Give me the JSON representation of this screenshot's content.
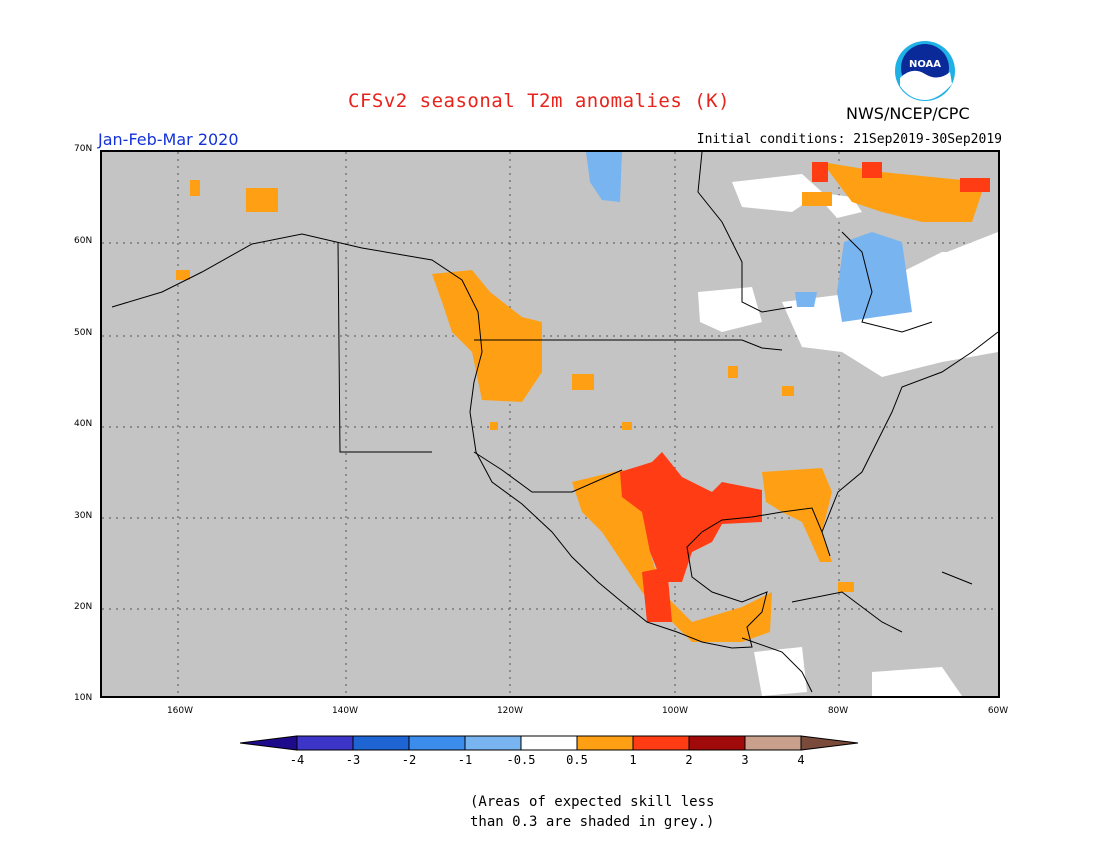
{
  "title": "CFSv2 seasonal T2m anomalies (K)",
  "season": "Jan-Feb-Mar 2020",
  "initial_conditions": "Initial conditions: 21Sep2019-30Sep2019",
  "agency": "NWS/NCEP/CPC",
  "logo_text": "NOAA",
  "lat_labels": [
    "70N",
    "60N",
    "50N",
    "40N",
    "30N",
    "20N",
    "10N"
  ],
  "lon_labels": [
    "160W",
    "140W",
    "120W",
    "100W",
    "80W",
    "60W"
  ],
  "colorbar": {
    "labels": [
      "-4",
      "-3",
      "-2",
      "-1",
      "-0.5",
      "0.5",
      "1",
      "2",
      "3",
      "4"
    ],
    "colors": [
      "#1e0b8c",
      "#3d35c8",
      "#1e64d2",
      "#3c8cec",
      "#78b4f0",
      "#ffffff",
      "#ffa014",
      "#ff3c14",
      "#a00a0a",
      "#c8a08c",
      "#7a4a3a"
    ]
  },
  "grey_color": "#c4c4c4",
  "note": {
    "line1": "(Areas of expected skill less",
    "line2": "than 0.3 are shaded in grey.)"
  }
}
